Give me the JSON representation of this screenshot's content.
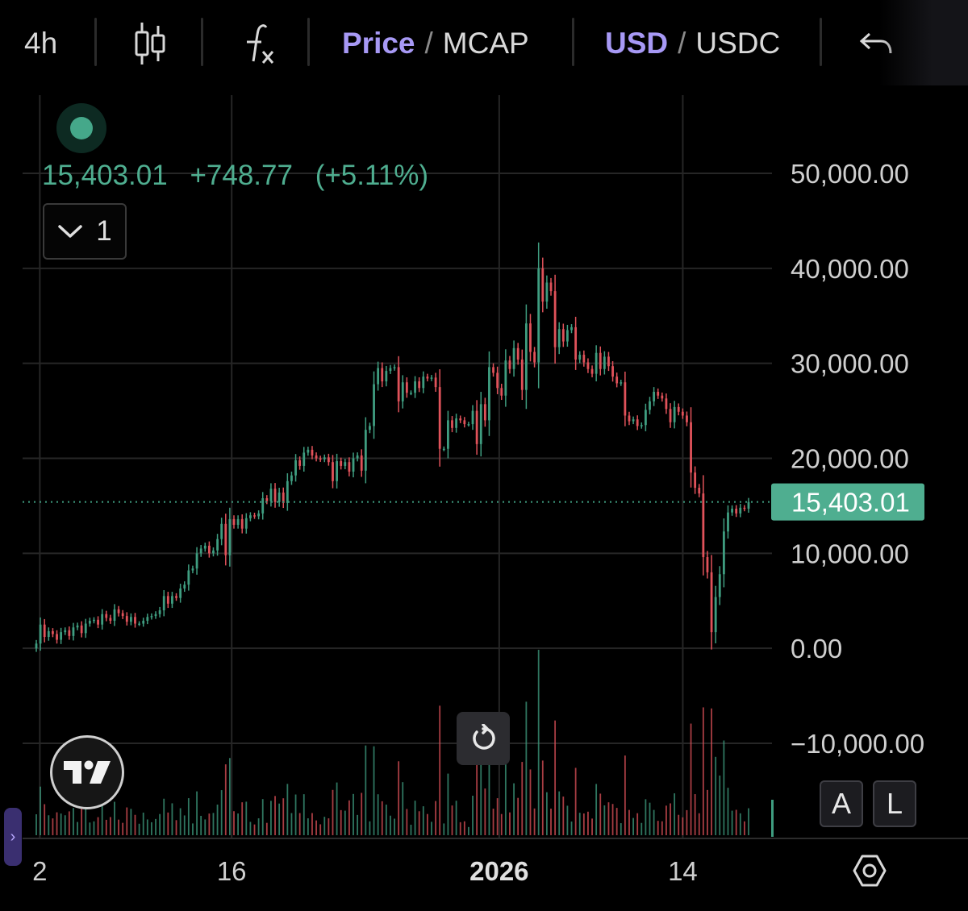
{
  "toolbar": {
    "timeframe": "4h",
    "price_option": "Price",
    "mcap_option": "MCAP",
    "usd_option": "USD",
    "usdc_option": "USDC",
    "slash": "/",
    "icons": [
      "candlestick-icon",
      "fx-indicator-icon",
      "undo-icon"
    ]
  },
  "legend": {
    "last_price": "15,403.01",
    "change": "+748.77",
    "change_pct": "(+5.11%)",
    "collapse_count": "1",
    "status_color": "#45a88a"
  },
  "scale_buttons": {
    "auto": "A",
    "log": "L"
  },
  "colors": {
    "up": "#3f9d80",
    "down": "#e0525a",
    "accent": "#a799f5",
    "price_label_bg": "#4fae90"
  },
  "chart_data": {
    "type": "candlestick",
    "interval": "4h",
    "series_type": "ohlc_with_volume",
    "ylim": [
      -12000,
      53000
    ],
    "y_ticks": [
      {
        "value": 50000,
        "label": "50,000.00"
      },
      {
        "value": 40000,
        "label": "40,000.00"
      },
      {
        "value": 30000,
        "label": "30,000.00"
      },
      {
        "value": 20000,
        "label": "20,000.00"
      },
      {
        "value": 10000,
        "label": "10,000.00"
      },
      {
        "value": 0,
        "label": "0.00"
      },
      {
        "value": -10000,
        "label": "−10,000.00"
      }
    ],
    "x_ticks": [
      {
        "label": "2",
        "bold": false,
        "pos": 0.023
      },
      {
        "label": "16",
        "bold": false,
        "pos": 0.279
      },
      {
        "label": "2026",
        "bold": true,
        "pos": 0.636
      },
      {
        "label": "14",
        "bold": false,
        "pos": 0.881
      }
    ],
    "last_price_line": {
      "value": 15403.01,
      "label": "15,403.01"
    },
    "grid": true,
    "closes": [
      500,
      2500,
      1200,
      1800,
      1500,
      900,
      1700,
      1900,
      1300,
      2200,
      2400,
      1600,
      2600,
      2900,
      3000,
      2500,
      3600,
      3200,
      2900,
      4100,
      3700,
      3400,
      2800,
      3300,
      2600,
      2600,
      2900,
      3300,
      3400,
      3600,
      4000,
      5500,
      4700,
      5500,
      5300,
      6300,
      6700,
      8200,
      8400,
      10000,
      10500,
      10800,
      10000,
      10300,
      11500,
      13100,
      9800,
      13600,
      13000,
      13600,
      12600,
      13700,
      14000,
      13900,
      14200,
      15800,
      15500,
      16800,
      15400,
      16400,
      15300,
      17600,
      18200,
      19800,
      19200,
      20600,
      20900,
      20300,
      20000,
      19900,
      20100,
      19600,
      17600,
      19700,
      19200,
      19600,
      18600,
      20000,
      20300,
      18700,
      23000,
      23400,
      27800,
      29500,
      28100,
      29200,
      29500,
      29600,
      26000,
      28000,
      26900,
      26900,
      28100,
      27400,
      28600,
      28400,
      28500,
      27500,
      21000,
      21000,
      24000,
      23200,
      24200,
      24000,
      23600,
      23600,
      25000,
      21500,
      25700,
      24000,
      29600,
      29000,
      27400,
      26600,
      30300,
      29400,
      31600,
      30400,
      27200,
      34200,
      31200,
      30100,
      40000,
      36500,
      38500,
      37600,
      31700,
      33600,
      32300,
      33500,
      33800,
      30400,
      30900,
      30100,
      29400,
      28900,
      31100,
      29400,
      30700,
      29700,
      28600,
      27900,
      28000,
      24500,
      23900,
      24100,
      23400,
      23500,
      25100,
      26000,
      27000,
      26600,
      26300,
      25200,
      23800,
      25400,
      24900,
      24500,
      23800,
      18500,
      16900,
      16300,
      9600,
      8000,
      1700,
      5400,
      7800,
      12300,
      14300,
      14700,
      14200,
      14800,
      14700,
      15403
    ]
  }
}
